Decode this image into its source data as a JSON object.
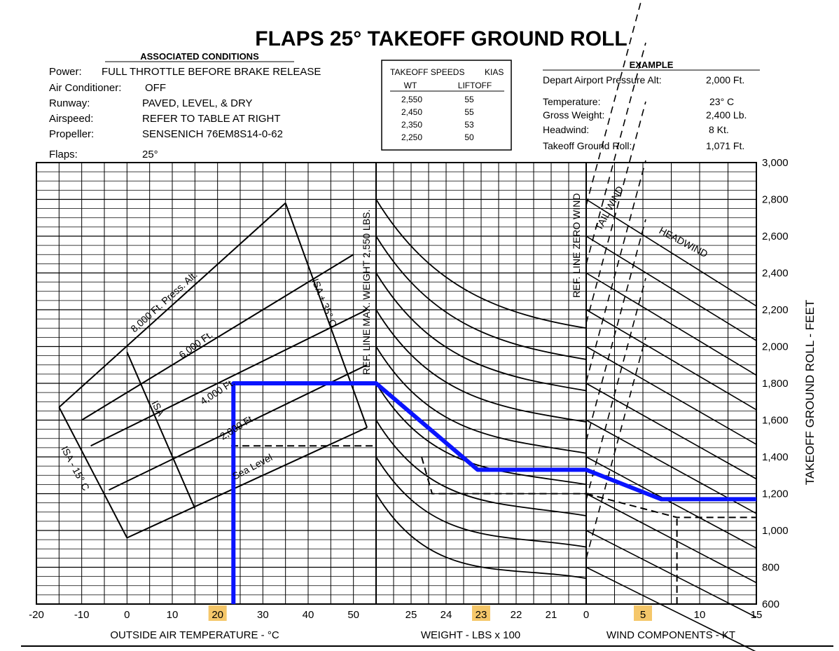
{
  "title": "FLAPS 25° TAKEOFF GROUND ROLL",
  "associated_conditions": {
    "heading": "ASSOCIATED CONDITIONS",
    "rows": [
      {
        "label": "Power:",
        "value": "FULL THROTTLE BEFORE BRAKE RELEASE"
      },
      {
        "label": "Air Conditioner:",
        "value": "OFF"
      },
      {
        "label": "Runway:",
        "value": "PAVED, LEVEL, & DRY"
      },
      {
        "label": "Airspeed:",
        "value": "REFER TO TABLE AT RIGHT"
      },
      {
        "label": "Propeller:",
        "value": "SENSENICH 76EM8S14-0-62"
      },
      {
        "label": "Flaps:",
        "value": "25°"
      }
    ]
  },
  "takeoff_speeds": {
    "heading_left": "TAKEOFF SPEEDS",
    "heading_right": "KIAS",
    "col_wt": "WT",
    "col_liftoff": "LIFTOFF",
    "rows": [
      {
        "wt": "2,550",
        "liftoff": "55"
      },
      {
        "wt": "2,450",
        "liftoff": "55"
      },
      {
        "wt": "2,350",
        "liftoff": "53"
      },
      {
        "wt": "2,250",
        "liftoff": "50"
      }
    ]
  },
  "example": {
    "heading": "EXAMPLE",
    "rows": [
      {
        "label": "Depart Airport Pressure Alt:",
        "value": "2,000 Ft."
      },
      {
        "label": "Temperature:",
        "value": "23° C"
      },
      {
        "label": "Gross Weight:",
        "value": "2,400 Lb."
      },
      {
        "label": "Headwind:",
        "value": "8 Kt."
      },
      {
        "label": "Takeoff Ground Roll:",
        "value": "1,071 Ft."
      }
    ]
  },
  "colors": {
    "ink": "#000000",
    "overlay": "#0a14ff",
    "highlight": "#f5c76a"
  },
  "chart_data": {
    "type": "line",
    "panels": {
      "temperature": {
        "xlabel": "OUTSIDE AIR TEMPERATURE - °C",
        "xlim": [
          -20,
          55
        ],
        "ticks": [
          "-20",
          "-10",
          "0",
          "10",
          "20",
          "30",
          "40",
          "50"
        ],
        "tick_values": [
          -20,
          -10,
          0,
          10,
          20,
          30,
          40,
          50
        ],
        "curves": [
          {
            "name": "Sea Level",
            "points": [
              [
                0,
                960
              ],
              [
                53,
                1560
              ]
            ]
          },
          {
            "name": "2,000 Ft.",
            "points": [
              [
                -4,
                1220
              ],
              [
                53,
                1900
              ]
            ]
          },
          {
            "name": "4,000 Ft.",
            "points": [
              [
                -8,
                1460
              ],
              [
                53,
                2200
              ]
            ]
          },
          {
            "name": "6,000 Ft.",
            "points": [
              [
                -10,
                1600
              ],
              [
                50,
                2500
              ]
            ]
          },
          {
            "name": "8,000 Ft. Press. Alt.",
            "points": [
              [
                -15,
                1670
              ],
              [
                35,
                2780
              ]
            ]
          }
        ],
        "isa_lines": [
          {
            "name": "ISA - 15° C",
            "points": [
              [
                -15,
                1670
              ],
              [
                0,
                960
              ]
            ]
          },
          {
            "name": "ISA",
            "points": [
              [
                0,
                1970
              ],
              [
                15,
                1120
              ]
            ]
          },
          {
            "name": "ISA + 35° C",
            "points": [
              [
                35,
                2780
              ],
              [
                53,
                1560
              ]
            ]
          }
        ],
        "labels": {
          "sea_level": "Sea Level",
          "alt_2000": "2,000 Ft.",
          "alt_4000": "4,000 Ft.",
          "alt_6000": "6,000 Ft.",
          "alt_8000": "8,000 Ft. Press. Alt.",
          "isa_minus": "ISA - 15° C",
          "isa": "ISA",
          "isa_plus": "ISA + 35° C"
        }
      },
      "weight": {
        "xlabel": "WEIGHT - LBS x 100",
        "xlim": [
          26,
          20
        ],
        "ticks": [
          "25",
          "24",
          "23",
          "22",
          "21"
        ],
        "tick_values": [
          25,
          24,
          23,
          22,
          21
        ],
        "ref_label": "REF. LINE MAX. WEIGHT 2,550 LBS."
      },
      "wind": {
        "xlabel": "WIND COMPONENTS - KT",
        "xlim": [
          0,
          15
        ],
        "ticks": [
          "0",
          "5",
          "10",
          "15"
        ],
        "tick_values": [
          0,
          5,
          10,
          15
        ],
        "ref_label": "REF. LINE ZERO WIND",
        "tailwind_label": "TAIL WIND",
        "headwind_label": "HEADWIND"
      }
    },
    "ylabel": "TAKEOFF GROUND ROLL - FEET",
    "ylim": [
      600,
      3000
    ],
    "yticks": [
      "600",
      "800",
      "1,000",
      "1,200",
      "1,400",
      "1,600",
      "1,800",
      "2,000",
      "2,200",
      "2,400",
      "2,600",
      "2,800",
      "3,000"
    ],
    "ytick_values": [
      600,
      800,
      1000,
      1200,
      1400,
      1600,
      1800,
      2000,
      2200,
      2400,
      2600,
      2800,
      3000
    ],
    "example_path_dashed": {
      "temperature": 23,
      "ground_roll_after_temp": 1460,
      "ground_roll_after_weight": 1200,
      "ground_roll_final": 1071,
      "headwind": 8
    },
    "overlay_path": {
      "temperature": 23.5,
      "ground_roll_after_temp": 1800,
      "weight_endpoint": 23.1,
      "ground_roll_after_weight": 1330,
      "wind_endpoint": 6.6,
      "ground_roll_final": 1170
    },
    "highlighted_ticks": [
      "20",
      "23",
      "5"
    ]
  }
}
